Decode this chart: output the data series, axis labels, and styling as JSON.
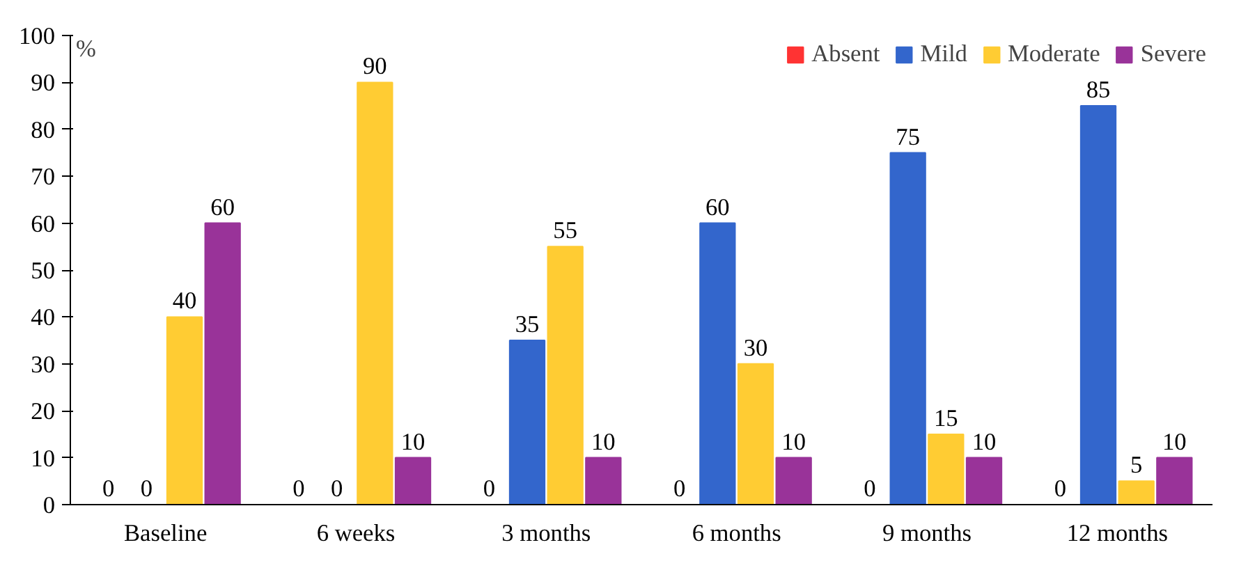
{
  "chart_data": {
    "type": "bar",
    "ylabel": "%",
    "categories": [
      "Baseline",
      "6 weeks",
      "3 months",
      "6 months",
      "9 months",
      "12 months"
    ],
    "series": [
      {
        "name": "Absent",
        "color": "#ff3333",
        "values": [
          0,
          0,
          0,
          0,
          0,
          0
        ]
      },
      {
        "name": "Mild",
        "color": "#3366cc",
        "values": [
          0,
          0,
          35,
          60,
          75,
          85
        ]
      },
      {
        "name": "Moderate",
        "color": "#ffcc33",
        "values": [
          40,
          90,
          55,
          30,
          15,
          5
        ]
      },
      {
        "name": "Severe",
        "color": "#993399",
        "values": [
          60,
          10,
          10,
          10,
          10,
          10
        ]
      }
    ],
    "ylim": [
      0,
      100
    ],
    "yticks": [
      0,
      10,
      20,
      30,
      40,
      50,
      60,
      70,
      80,
      90,
      100
    ],
    "grid": false,
    "legend": "top right",
    "data_labels": true
  }
}
